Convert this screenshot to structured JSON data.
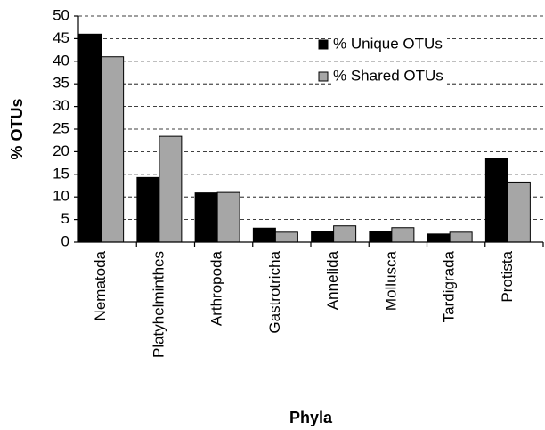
{
  "chart_data": {
    "type": "bar",
    "xlabel": "Phyla",
    "ylabel": "% OTUs",
    "categories": [
      "Nematoda",
      "Platyhelminthes",
      "Arthropoda",
      "Gastrotricha",
      "Annelida",
      "Mollusca",
      "Tardigrada",
      "Protista"
    ],
    "series": [
      {
        "name": "% Unique OTUs",
        "color": "#000000",
        "values": [
          46,
          14.3,
          10.9,
          3.1,
          2.3,
          2.3,
          1.8,
          18.6
        ]
      },
      {
        "name": "% Shared OTUs",
        "color": "#a6a6a6",
        "values": [
          41,
          23.4,
          11.0,
          2.2,
          3.6,
          3.2,
          2.2,
          13.3
        ]
      }
    ],
    "ylim": [
      0,
      50
    ],
    "yticks": [
      0,
      5,
      10,
      15,
      20,
      25,
      30,
      35,
      40,
      45,
      50
    ],
    "grid": true,
    "legend": "upper right"
  }
}
